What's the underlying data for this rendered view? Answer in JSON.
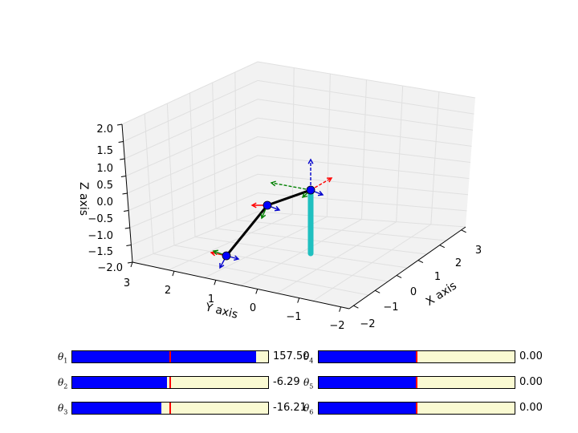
{
  "plot": {
    "axis_labels": {
      "x": "X axis",
      "y": "Y axis",
      "z": "Z axis"
    },
    "x_ticks": [
      "−2",
      "−1",
      "0",
      "1",
      "2",
      "3"
    ],
    "y_ticks": [
      "3",
      "2",
      "1",
      "0",
      "−1",
      "−2"
    ],
    "z_ticks": [
      "2.0",
      "1.5",
      "1.0",
      "0.5",
      "0.0",
      "−0.5",
      "−1.0",
      "−1.5",
      "−2.0"
    ],
    "colors": {
      "pane": "#f2f2f2",
      "grid": "#e0e0e0",
      "base": "#20c0c0",
      "link": "#000000",
      "joint": "#0000ff",
      "frame_x": "#ff0000",
      "frame_y": "#008000",
      "frame_z": "#0000cc"
    }
  },
  "sliders": [
    {
      "symbol": "θ",
      "index": "1",
      "value_text": "157.50",
      "fraction": 0.94,
      "init_fraction": 0.5,
      "interactable": true
    },
    {
      "symbol": "θ",
      "index": "2",
      "value_text": "-6.29",
      "fraction": 0.483,
      "init_fraction": 0.5,
      "interactable": true
    },
    {
      "symbol": "θ",
      "index": "3",
      "value_text": "-16.21",
      "fraction": 0.455,
      "init_fraction": 0.5,
      "interactable": true
    },
    {
      "symbol": "θ",
      "index": "4",
      "value_text": "0.00",
      "fraction": 0.5,
      "init_fraction": 0.5,
      "interactable": true
    },
    {
      "symbol": "θ",
      "index": "5",
      "value_text": "0.00",
      "fraction": 0.5,
      "init_fraction": 0.5,
      "interactable": true
    },
    {
      "symbol": "θ",
      "index": "6",
      "value_text": "0.00",
      "fraction": 0.5,
      "init_fraction": 0.5,
      "interactable": true
    }
  ],
  "colors": {
    "slider_fill": "#0000ff",
    "slider_bg": "#fafad2",
    "slider_init": "#ff0000"
  }
}
